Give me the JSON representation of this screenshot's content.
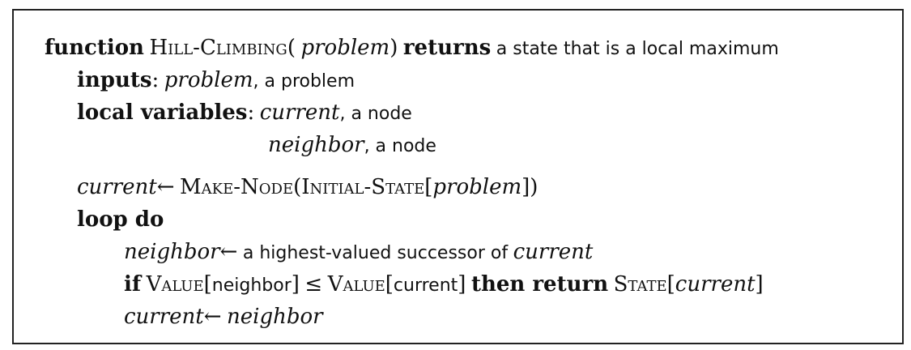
{
  "algorithm": {
    "header": {
      "kw_function": "function",
      "name": "Hill-Climbing",
      "open": "(",
      "param": "problem",
      "close": ")",
      "kw_returns": "returns",
      "description": "a state that is a local maximum"
    },
    "inputs": {
      "label": "inputs",
      "colon": ":",
      "var": "problem",
      "desc": ", a problem"
    },
    "local_variables": {
      "label": "local variables",
      "colon": ":",
      "var1": "current",
      "desc1": ", a node",
      "var2": "neighbor",
      "desc2": ", a node"
    },
    "body": {
      "init": {
        "lhs": "current",
        "arrow": "←",
        "fn1": "Make-Node",
        "open1": "(",
        "fn2": "Initial-State",
        "open2": "[",
        "arg": "problem",
        "close": "])"
      },
      "loop": {
        "kw": "loop do"
      },
      "step1": {
        "lhs": "neighbor",
        "arrow": "←",
        "text": "a highest-valued successor of",
        "var": "current"
      },
      "step2": {
        "kw_if": "if",
        "fn1": "Value",
        "arg1_open": "[",
        "arg1": "neighbor",
        "arg1_close": "]",
        "op": "≤",
        "fn2": "Value",
        "arg2_open": "[",
        "arg2": "current",
        "arg2_close": "]",
        "kw_then": "then return",
        "fn3": "State",
        "arg3_open": "[",
        "arg3": "current",
        "arg3_close": "]"
      },
      "step3": {
        "lhs": "current",
        "arrow": "←",
        "rhs": "neighbor"
      }
    }
  }
}
